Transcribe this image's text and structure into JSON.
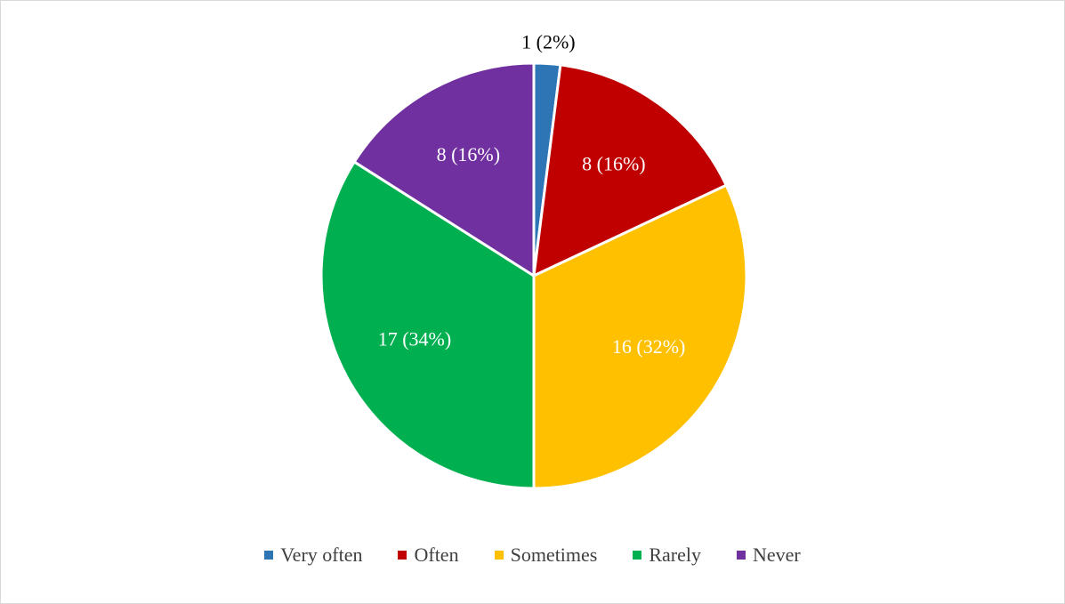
{
  "chart_data": {
    "type": "pie",
    "title": "",
    "legend_position": "bottom",
    "slices": [
      {
        "label": "Very often",
        "value": 1,
        "percent": 2,
        "data_label": "1 (2%)",
        "color": "#2E75B6",
        "label_color": "#000000",
        "label_outside": true
      },
      {
        "label": "Often",
        "value": 8,
        "percent": 16,
        "data_label": "8 (16%)",
        "color": "#C00000",
        "label_color": "#ffffff",
        "label_outside": false
      },
      {
        "label": "Sometimes",
        "value": 16,
        "percent": 32,
        "data_label": "16 (32%)",
        "color": "#FFC000",
        "label_color": "#ffffff",
        "label_outside": false
      },
      {
        "label": "Rarely",
        "value": 17,
        "percent": 34,
        "data_label": "17 (34%)",
        "color": "#00B050",
        "label_color": "#ffffff",
        "label_outside": false
      },
      {
        "label": "Never",
        "value": 8,
        "percent": 16,
        "data_label": "8 (16%)",
        "color": "#7030A0",
        "label_color": "#ffffff",
        "label_outside": false
      }
    ]
  }
}
